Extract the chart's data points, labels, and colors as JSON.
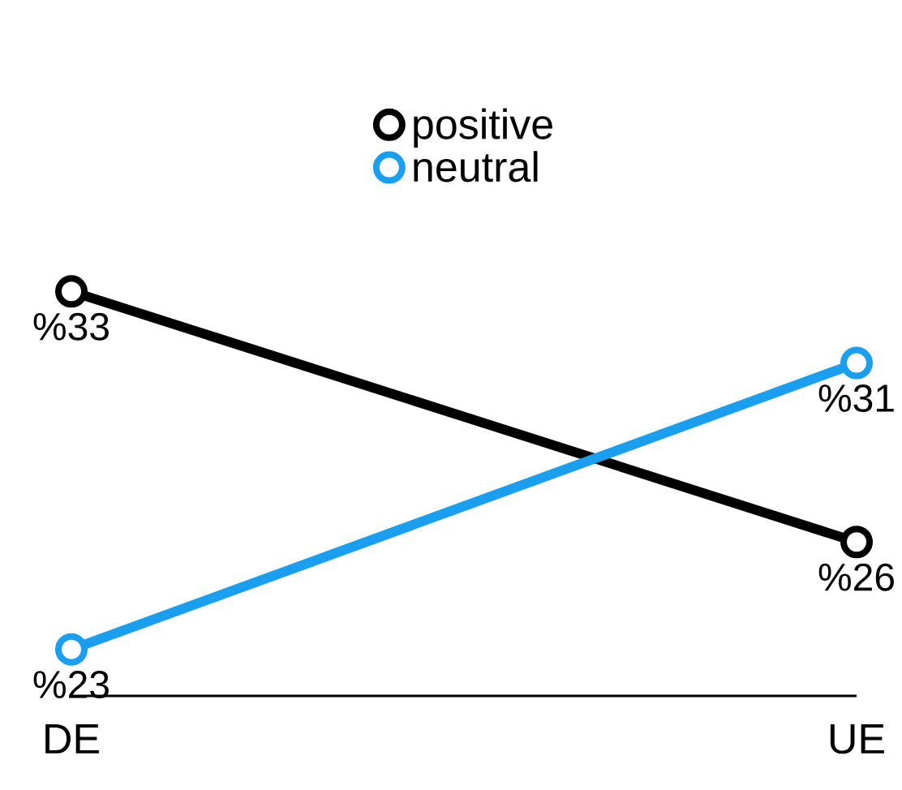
{
  "chart_data": {
    "type": "line",
    "categories": [
      "DE",
      "UE"
    ],
    "series": [
      {
        "name": "positive",
        "color": "#000000",
        "values": [
          33,
          26
        ],
        "value_labels": [
          "%33",
          "%26"
        ]
      },
      {
        "name": "neutral",
        "color": "#1a9ef0",
        "values": [
          23,
          31
        ],
        "value_labels": [
          "%23",
          "%31"
        ]
      }
    ],
    "legend": "top",
    "marker": "circle",
    "line_style": "solid",
    "tick_labels": "x"
  }
}
